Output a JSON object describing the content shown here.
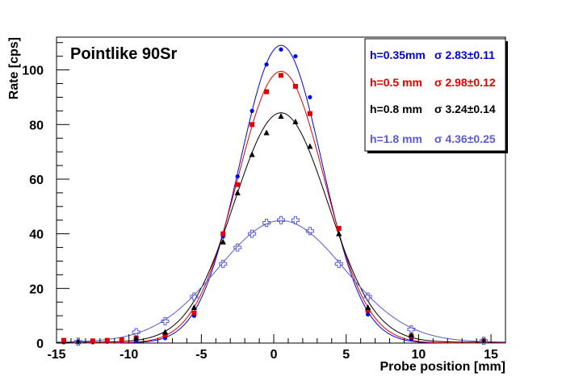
{
  "chart_data": {
    "type": "scatter",
    "title": "Pointlike 90Sr",
    "xlabel": "Probe position [mm]",
    "ylabel": "Rate [cps]",
    "xlim": [
      -15,
      16
    ],
    "ylim": [
      0,
      112
    ],
    "x_ticks": [
      -15,
      -10,
      -5,
      0,
      5,
      10,
      15
    ],
    "y_ticks": [
      0,
      20,
      40,
      60,
      80,
      100
    ],
    "x_tick_labels": [
      "-15",
      "-10",
      "-5",
      "0",
      "5",
      "10",
      "15"
    ],
    "y_tick_labels": [
      "0",
      "20",
      "40",
      "60",
      "80",
      "100"
    ],
    "legend_position": "top-right",
    "series": [
      {
        "name": "h=0.35mm",
        "sigma_label": "σ 2.83±0.11",
        "color": "#0000e0",
        "marker": "circle",
        "fit": {
          "amplitude": 109,
          "mean": 0.5,
          "sigma": 2.83,
          "offset": 0
        },
        "x": [
          -14.5,
          -13.5,
          -12.5,
          -11.5,
          -10.5,
          -9.5,
          -7.5,
          -5.5,
          -3.5,
          -2.5,
          -1.5,
          -0.5,
          0.5,
          1.5,
          2.5,
          4.5,
          6.5,
          9.5,
          14.5
        ],
        "y": [
          0.3,
          0.5,
          0.3,
          0.5,
          0.8,
          0.8,
          1.8,
          10,
          39,
          61,
          85,
          102,
          107.5,
          105,
          90,
          42,
          10.5,
          1.5,
          0.8
        ]
      },
      {
        "name": "h=0.5 mm",
        "sigma_label": "σ 2.98±0.12",
        "color": "#e00000",
        "marker": "square",
        "fit": {
          "amplitude": 99.5,
          "mean": 0.5,
          "sigma": 2.98,
          "offset": 0
        },
        "x": [
          -14.5,
          -12.5,
          -11.5,
          -10.5,
          -9.5,
          -7.5,
          -5.5,
          -3.5,
          -2.5,
          -1.5,
          -0.5,
          0.5,
          1.5,
          2.5,
          4.5,
          6.5,
          9.5,
          14.5
        ],
        "y": [
          1,
          0.8,
          1,
          1.2,
          1.8,
          3,
          11,
          40,
          58,
          80,
          92,
          98,
          94,
          84,
          42,
          12,
          2.5,
          0.8
        ]
      },
      {
        "name": "h=0.8 mm",
        "sigma_label": "σ 3.24±0.14",
        "color": "#000000",
        "marker": "triangle",
        "fit": {
          "amplitude": 84,
          "mean": 0.5,
          "sigma": 3.24,
          "offset": 0.3
        },
        "x": [
          -13.5,
          -9.5,
          -7.5,
          -5.5,
          -3.5,
          -2.5,
          -1.5,
          -0.5,
          0.5,
          1.5,
          2.5,
          4.5,
          6.5,
          9.5,
          14.5
        ],
        "y": [
          0.5,
          1.8,
          4,
          13,
          37,
          55,
          69,
          77,
          83,
          81,
          72,
          40,
          13,
          3,
          0.8
        ]
      },
      {
        "name": "h=1.8 mm",
        "sigma_label": "σ 4.36±0.25",
        "color": "#5b5bd0",
        "marker": "open-cross",
        "fit": {
          "amplitude": 44.5,
          "mean": 0.5,
          "sigma": 4.36,
          "offset": 0.3
        },
        "x": [
          -13.5,
          -9.5,
          -7.5,
          -5.5,
          -3.5,
          -2.5,
          -1.5,
          -0.5,
          0.5,
          1.5,
          2.5,
          4.5,
          6.5,
          9.5,
          14.5
        ],
        "y": [
          0.5,
          4,
          8,
          17,
          29,
          35,
          40,
          44,
          45,
          45,
          41,
          29,
          17,
          5,
          0.8
        ]
      }
    ]
  }
}
